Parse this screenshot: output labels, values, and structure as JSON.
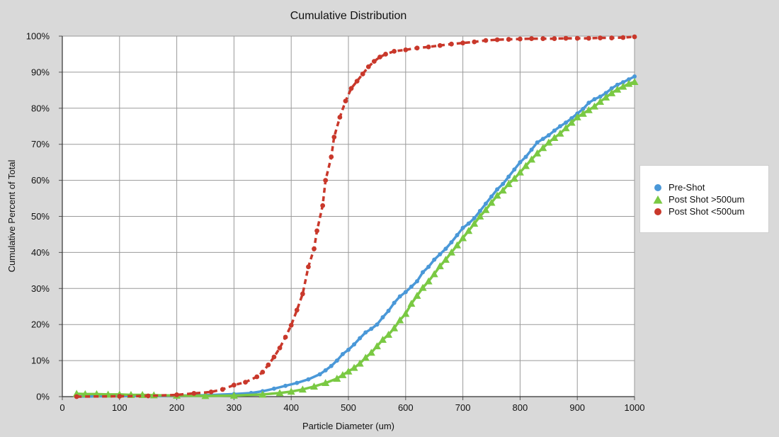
{
  "chart_data": {
    "type": "line",
    "title": "Cumulative Distribution",
    "xlabel": "Particle Diameter (um)",
    "ylabel": "Cumulative Percent of Total",
    "xlim": [
      0,
      1000
    ],
    "ylim": [
      0,
      100
    ],
    "x_ticks": [
      "0",
      "100",
      "200",
      "300",
      "400",
      "500",
      "600",
      "700",
      "800",
      "900",
      "1000"
    ],
    "y_ticks": [
      "0%",
      "10%",
      "20%",
      "30%",
      "40%",
      "50%",
      "60%",
      "70%",
      "80%",
      "90%",
      "100%"
    ],
    "grid": true,
    "legend_position": "right",
    "series": [
      {
        "name": "Pre-Shot",
        "color": "#4a98d8",
        "marker": "circle",
        "line_style": "solid",
        "points": [
          [
            25,
            0
          ],
          [
            100,
            0.2
          ],
          [
            200,
            0.3
          ],
          [
            250,
            0.4
          ],
          [
            300,
            0.7
          ],
          [
            330,
            1.0
          ],
          [
            350,
            1.5
          ],
          [
            370,
            2.2
          ],
          [
            390,
            3.0
          ],
          [
            410,
            3.8
          ],
          [
            430,
            4.8
          ],
          [
            450,
            6.2
          ],
          [
            460,
            7.3
          ],
          [
            470,
            8.5
          ],
          [
            480,
            10.0
          ],
          [
            490,
            11.8
          ],
          [
            500,
            13.0
          ],
          [
            510,
            14.5
          ],
          [
            520,
            16.2
          ],
          [
            530,
            17.8
          ],
          [
            540,
            18.8
          ],
          [
            550,
            20.0
          ],
          [
            560,
            22.0
          ],
          [
            570,
            23.8
          ],
          [
            580,
            26.0
          ],
          [
            590,
            27.8
          ],
          [
            600,
            29.0
          ],
          [
            610,
            30.5
          ],
          [
            620,
            32.0
          ],
          [
            630,
            34.5
          ],
          [
            640,
            36.0
          ],
          [
            650,
            38.0
          ],
          [
            660,
            39.5
          ],
          [
            670,
            41.0
          ],
          [
            680,
            42.8
          ],
          [
            690,
            44.8
          ],
          [
            700,
            46.8
          ],
          [
            710,
            48.0
          ],
          [
            720,
            49.5
          ],
          [
            730,
            51.5
          ],
          [
            740,
            53.5
          ],
          [
            750,
            55.5
          ],
          [
            760,
            57.5
          ],
          [
            770,
            59.0
          ],
          [
            780,
            61.0
          ],
          [
            790,
            63.0
          ],
          [
            800,
            65.0
          ],
          [
            810,
            66.5
          ],
          [
            820,
            68.5
          ],
          [
            830,
            70.5
          ],
          [
            840,
            71.5
          ],
          [
            850,
            72.5
          ],
          [
            860,
            73.8
          ],
          [
            870,
            75.0
          ],
          [
            880,
            76.0
          ],
          [
            890,
            77.2
          ],
          [
            900,
            78.5
          ],
          [
            910,
            79.8
          ],
          [
            920,
            81.5
          ],
          [
            930,
            82.5
          ],
          [
            940,
            83.2
          ],
          [
            950,
            84.2
          ],
          [
            960,
            85.5
          ],
          [
            970,
            86.5
          ],
          [
            980,
            87.2
          ],
          [
            990,
            88.0
          ],
          [
            1000,
            88.8
          ]
        ]
      },
      {
        "name": "Post Shot >500um",
        "color": "#7ac943",
        "marker": "triangle",
        "line_style": "solid",
        "points": [
          [
            25,
            0.8
          ],
          [
            40,
            0.7
          ],
          [
            60,
            0.7
          ],
          [
            80,
            0.6
          ],
          [
            100,
            0.6
          ],
          [
            120,
            0.5
          ],
          [
            140,
            0.5
          ],
          [
            160,
            0.4
          ],
          [
            200,
            0.3
          ],
          [
            250,
            0.2
          ],
          [
            300,
            0.3
          ],
          [
            350,
            0.6
          ],
          [
            380,
            1.0
          ],
          [
            400,
            1.4
          ],
          [
            420,
            2.0
          ],
          [
            440,
            2.8
          ],
          [
            460,
            3.8
          ],
          [
            480,
            5.0
          ],
          [
            490,
            6.0
          ],
          [
            500,
            7.0
          ],
          [
            510,
            8.0
          ],
          [
            520,
            9.2
          ],
          [
            530,
            10.8
          ],
          [
            540,
            12.2
          ],
          [
            550,
            14.0
          ],
          [
            560,
            15.8
          ],
          [
            570,
            17.2
          ],
          [
            580,
            19.0
          ],
          [
            590,
            21.2
          ],
          [
            600,
            23.0
          ],
          [
            610,
            25.8
          ],
          [
            620,
            28.0
          ],
          [
            630,
            30.2
          ],
          [
            640,
            32.0
          ],
          [
            650,
            34.0
          ],
          [
            660,
            36.2
          ],
          [
            670,
            38.0
          ],
          [
            680,
            40.0
          ],
          [
            690,
            42.0
          ],
          [
            700,
            44.0
          ],
          [
            710,
            46.0
          ],
          [
            720,
            48.0
          ],
          [
            730,
            50.0
          ],
          [
            740,
            51.8
          ],
          [
            750,
            53.8
          ],
          [
            760,
            55.8
          ],
          [
            770,
            57.2
          ],
          [
            780,
            59.0
          ],
          [
            790,
            60.5
          ],
          [
            800,
            62.2
          ],
          [
            810,
            64.0
          ],
          [
            820,
            65.8
          ],
          [
            830,
            67.5
          ],
          [
            840,
            69.0
          ],
          [
            850,
            70.5
          ],
          [
            860,
            71.8
          ],
          [
            870,
            73.0
          ],
          [
            880,
            74.5
          ],
          [
            890,
            76.0
          ],
          [
            900,
            77.5
          ],
          [
            910,
            78.5
          ],
          [
            920,
            79.5
          ],
          [
            930,
            80.5
          ],
          [
            940,
            81.8
          ],
          [
            950,
            83.0
          ],
          [
            960,
            84.2
          ],
          [
            970,
            85.2
          ],
          [
            980,
            86.0
          ],
          [
            990,
            86.8
          ],
          [
            1000,
            87.3
          ]
        ]
      },
      {
        "name": "Post Shot <500um",
        "color": "#c9382b",
        "marker": "circle",
        "line_style": "dashed",
        "points": [
          [
            25,
            0
          ],
          [
            100,
            0.1
          ],
          [
            150,
            0.2
          ],
          [
            200,
            0.5
          ],
          [
            230,
            0.9
          ],
          [
            260,
            1.3
          ],
          [
            280,
            2.0
          ],
          [
            300,
            3.2
          ],
          [
            320,
            4.0
          ],
          [
            340,
            5.5
          ],
          [
            350,
            6.8
          ],
          [
            360,
            8.8
          ],
          [
            370,
            11.0
          ],
          [
            380,
            13.5
          ],
          [
            390,
            16.5
          ],
          [
            400,
            19.8
          ],
          [
            410,
            24.0
          ],
          [
            420,
            28.5
          ],
          [
            430,
            36.0
          ],
          [
            440,
            41.0
          ],
          [
            445,
            46.0
          ],
          [
            455,
            53.0
          ],
          [
            460,
            60.0
          ],
          [
            470,
            66.5
          ],
          [
            475,
            72.0
          ],
          [
            485,
            77.5
          ],
          [
            495,
            82.0
          ],
          [
            505,
            85.5
          ],
          [
            515,
            87.5
          ],
          [
            525,
            89.5
          ],
          [
            535,
            91.5
          ],
          [
            545,
            93.0
          ],
          [
            555,
            94.2
          ],
          [
            565,
            95.0
          ],
          [
            580,
            95.8
          ],
          [
            600,
            96.2
          ],
          [
            620,
            96.7
          ],
          [
            640,
            97.0
          ],
          [
            660,
            97.4
          ],
          [
            680,
            97.8
          ],
          [
            700,
            98.1
          ],
          [
            720,
            98.4
          ],
          [
            740,
            98.8
          ],
          [
            760,
            99.0
          ],
          [
            780,
            99.1
          ],
          [
            800,
            99.2
          ],
          [
            820,
            99.3
          ],
          [
            840,
            99.3
          ],
          [
            860,
            99.3
          ],
          [
            880,
            99.4
          ],
          [
            900,
            99.4
          ],
          [
            920,
            99.4
          ],
          [
            940,
            99.5
          ],
          [
            960,
            99.5
          ],
          [
            980,
            99.6
          ],
          [
            1000,
            99.8
          ]
        ]
      }
    ]
  }
}
